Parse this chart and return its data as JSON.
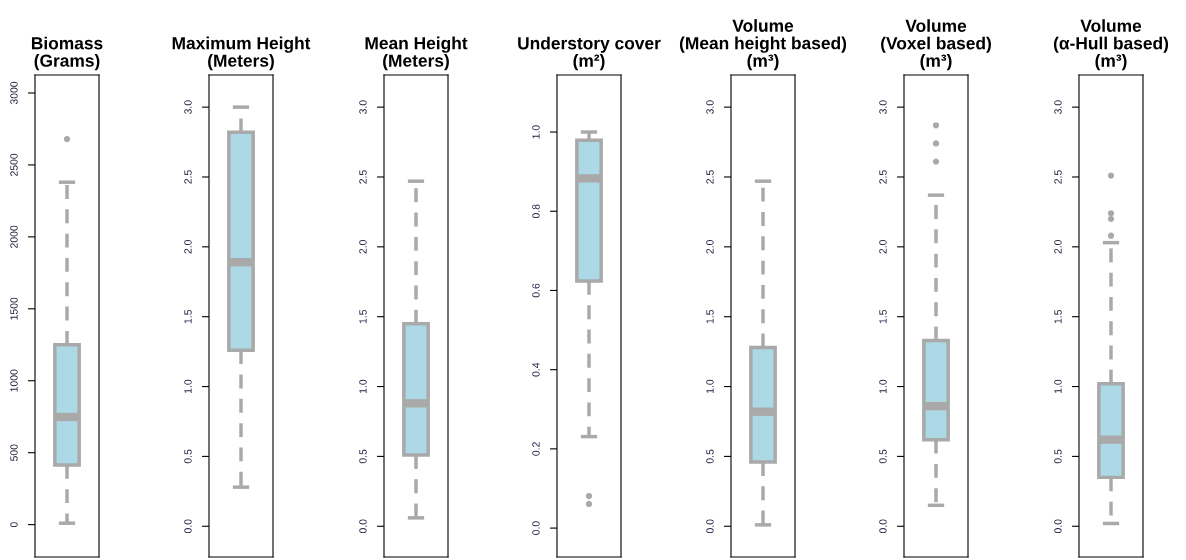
{
  "chart_data": [
    {
      "type": "box",
      "title": "Biomass\n(Grams)",
      "categories": [
        null
      ],
      "colors": [
        "#add8e6"
      ],
      "tick_labels": "y",
      "ylim": [
        -225,
        3125
      ],
      "yticks": [
        0,
        500,
        1000,
        1500,
        2000,
        2500,
        3000
      ],
      "boxes": [
        {
          "low": 10,
          "q1": 415,
          "median": 748,
          "q3": 1250,
          "high": 2380,
          "outliers": [
            2680
          ]
        }
      ]
    },
    {
      "type": "box",
      "title": "Maximum Height\n(Meters)",
      "categories": [
        null
      ],
      "colors": [
        "#add8e6"
      ],
      "tick_labels": "y",
      "ylim": [
        -0.22,
        3.23
      ],
      "yticks": [
        {
          "value": 0,
          "label": "0.0"
        },
        {
          "value": 0.5,
          "label": "0.5"
        },
        {
          "value": 1,
          "label": "1.0"
        },
        {
          "value": 1.5,
          "label": "1.5"
        },
        {
          "value": 2,
          "label": "2.0"
        },
        {
          "value": 2.5,
          "label": "2.5"
        },
        {
          "value": 3,
          "label": "3.0"
        }
      ],
      "boxes": [
        {
          "low": 0.28,
          "q1": 1.26,
          "median": 1.89,
          "q3": 2.82,
          "high": 3.0
        }
      ]
    },
    {
      "type": "box",
      "title": "Mean Height\n(Meters)",
      "categories": [
        null
      ],
      "colors": [
        "#add8e6"
      ],
      "tick_labels": "y",
      "ylim": [
        -0.22,
        3.23
      ],
      "yticks": [
        {
          "value": 0,
          "label": "0.0"
        },
        {
          "value": 0.5,
          "label": "0.5"
        },
        {
          "value": 1,
          "label": "1.0"
        },
        {
          "value": 1.5,
          "label": "1.5"
        },
        {
          "value": 2,
          "label": "2.0"
        },
        {
          "value": 2.5,
          "label": "2.5"
        },
        {
          "value": 3,
          "label": "3.0"
        }
      ],
      "boxes": [
        {
          "low": 0.06,
          "q1": 0.51,
          "median": 0.88,
          "q3": 1.45,
          "high": 2.47
        }
      ]
    },
    {
      "type": "box",
      "title": "Understory cover\n(m²)",
      "categories": [
        null
      ],
      "colors": [
        "#add8e6"
      ],
      "tick_labels": "y",
      "ylim": [
        -0.073,
        1.144
      ],
      "yticks": [
        {
          "value": 0,
          "label": "0.0"
        },
        {
          "value": 0.2,
          "label": "0.2"
        },
        {
          "value": 0.4,
          "label": "0.4"
        },
        {
          "value": 0.6,
          "label": "0.6"
        },
        {
          "value": 0.8,
          "label": "0.8"
        },
        {
          "value": 1,
          "label": "1.0"
        }
      ],
      "boxes": [
        {
          "low": 0.231,
          "q1": 0.624,
          "median": 0.883,
          "q3": 0.979,
          "high": 1.0,
          "outliers": [
            0.081,
            0.061
          ]
        }
      ]
    },
    {
      "type": "box",
      "title": "Volume\n(Mean height based)\n(m³)",
      "categories": [
        null
      ],
      "colors": [
        "#add8e6"
      ],
      "tick_labels": "y",
      "ylim": [
        -0.22,
        3.23
      ],
      "yticks": [
        {
          "value": 0,
          "label": "0.0"
        },
        {
          "value": 0.5,
          "label": "0.5"
        },
        {
          "value": 1,
          "label": "1.0"
        },
        {
          "value": 1.5,
          "label": "1.5"
        },
        {
          "value": 2,
          "label": "2.0"
        },
        {
          "value": 2.5,
          "label": "2.5"
        },
        {
          "value": 3,
          "label": "3.0"
        }
      ],
      "boxes": [
        {
          "low": 0.01,
          "q1": 0.46,
          "median": 0.82,
          "q3": 1.28,
          "high": 2.47
        }
      ]
    },
    {
      "type": "box",
      "title": "Volume\n(Voxel based)\n(m³)",
      "categories": [
        null
      ],
      "colors": [
        "#add8e6"
      ],
      "tick_labels": "y",
      "ylim": [
        -0.22,
        3.23
      ],
      "yticks": [
        {
          "value": 0,
          "label": "0.0"
        },
        {
          "value": 0.5,
          "label": "0.5"
        },
        {
          "value": 1,
          "label": "1.0"
        },
        {
          "value": 1.5,
          "label": "1.5"
        },
        {
          "value": 2,
          "label": "2.0"
        },
        {
          "value": 2.5,
          "label": "2.5"
        },
        {
          "value": 3,
          "label": "3.0"
        }
      ],
      "boxes": [
        {
          "low": 0.15,
          "q1": 0.62,
          "median": 0.86,
          "q3": 1.33,
          "high": 2.37,
          "outliers": [
            2.87,
            2.74,
            2.61
          ]
        }
      ]
    },
    {
      "type": "box",
      "title": "Volume\n(α-Hull based)\n(m³)",
      "categories": [
        null
      ],
      "colors": [
        "#add8e6"
      ],
      "tick_labels": "y",
      "ylim": [
        -0.22,
        3.23
      ],
      "yticks": [
        {
          "value": 0,
          "label": "0.0"
        },
        {
          "value": 0.5,
          "label": "0.5"
        },
        {
          "value": 1,
          "label": "1.0"
        },
        {
          "value": 1.5,
          "label": "1.5"
        },
        {
          "value": 2,
          "label": "2.0"
        },
        {
          "value": 2.5,
          "label": "2.5"
        },
        {
          "value": 3,
          "label": "3.0"
        }
      ],
      "boxes": [
        {
          "low": 0.02,
          "q1": 0.35,
          "median": 0.62,
          "q3": 1.02,
          "high": 2.03,
          "outliers": [
            2.51,
            2.24,
            2.2,
            2.08
          ]
        }
      ]
    }
  ]
}
